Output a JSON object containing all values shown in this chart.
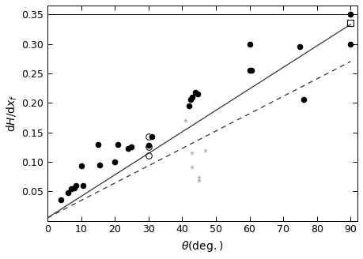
{
  "xlabel": "θ(deg.)",
  "ylabel": "dH/dx_f",
  "xlim": [
    0,
    92
  ],
  "ylim": [
    0,
    0.365
  ],
  "xticks": [
    0,
    10,
    20,
    30,
    40,
    50,
    60,
    70,
    80,
    90
  ],
  "yticks": [
    0.05,
    0.1,
    0.15,
    0.2,
    0.25,
    0.3,
    0.35
  ],
  "ymax_line": 0.35,
  "black_dots": [
    [
      4,
      0.035
    ],
    [
      6,
      0.048
    ],
    [
      7,
      0.055
    ],
    [
      8,
      0.056
    ],
    [
      8.5,
      0.06
    ],
    [
      10,
      0.093
    ],
    [
      10.5,
      0.06
    ],
    [
      15,
      0.13
    ],
    [
      15.5,
      0.095
    ],
    [
      20,
      0.1
    ],
    [
      21,
      0.13
    ],
    [
      24,
      0.122
    ],
    [
      25,
      0.125
    ],
    [
      30,
      0.128
    ],
    [
      31,
      0.143
    ],
    [
      42,
      0.195
    ],
    [
      42.5,
      0.205
    ],
    [
      43,
      0.21
    ],
    [
      44,
      0.218
    ],
    [
      44.5,
      0.215
    ],
    [
      60,
      0.3
    ],
    [
      60,
      0.255
    ],
    [
      60.5,
      0.255
    ],
    [
      75,
      0.295
    ],
    [
      76,
      0.205
    ],
    [
      90,
      0.35
    ],
    [
      90,
      0.3
    ]
  ],
  "gray_asterisks": [
    [
      41,
      0.17
    ],
    [
      43,
      0.115
    ],
    [
      43,
      0.09
    ],
    [
      45,
      0.073
    ],
    [
      45,
      0.068
    ],
    [
      47,
      0.118
    ]
  ],
  "open_circles": [
    [
      30,
      0.143
    ],
    [
      30,
      0.125
    ],
    [
      30,
      0.11
    ]
  ],
  "open_square": [
    90,
    0.335
  ],
  "solid_line_pts": [
    [
      0,
      0.005
    ],
    [
      90,
      0.333
    ]
  ],
  "dashed_line_pts": [
    [
      0,
      0.005
    ],
    [
      90,
      0.27
    ]
  ],
  "bg_color": "#ffffff",
  "dot_color": "#000000",
  "gray_color": "#aaaaaa",
  "line_color": "#333333"
}
